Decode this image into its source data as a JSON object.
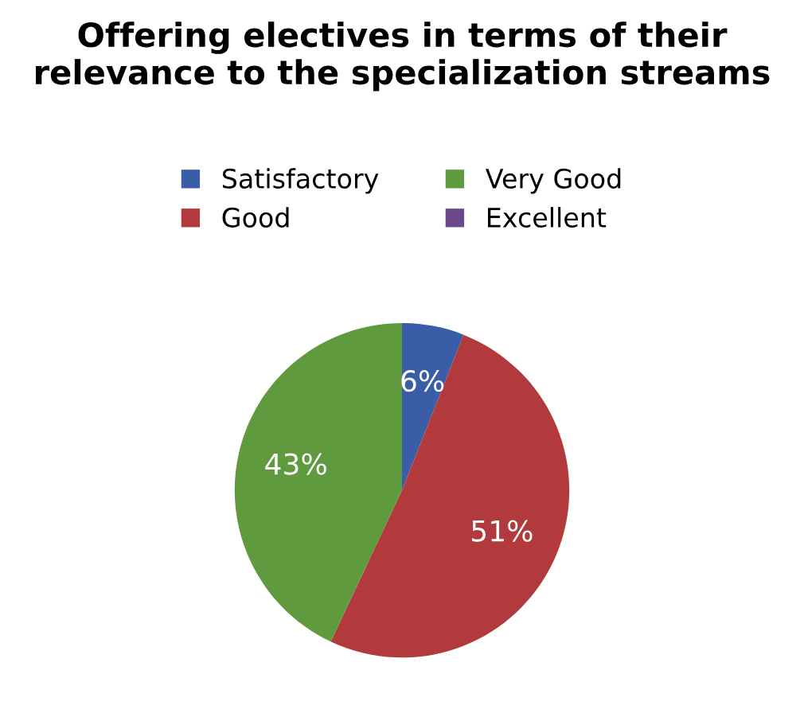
{
  "chart_data": {
    "type": "pie",
    "title": "Offering electives in terms of their relevance to the specialization streams",
    "categories": [
      "Satisfactory",
      "Good",
      "Very Good",
      "Excellent"
    ],
    "values": [
      6,
      51,
      43,
      0
    ],
    "colors": [
      "#3a5da8",
      "#b23a3c",
      "#5f9a3e",
      "#6b4a8c"
    ],
    "value_labels": [
      "6%",
      "51%",
      "43%",
      null
    ],
    "legend": "top"
  }
}
